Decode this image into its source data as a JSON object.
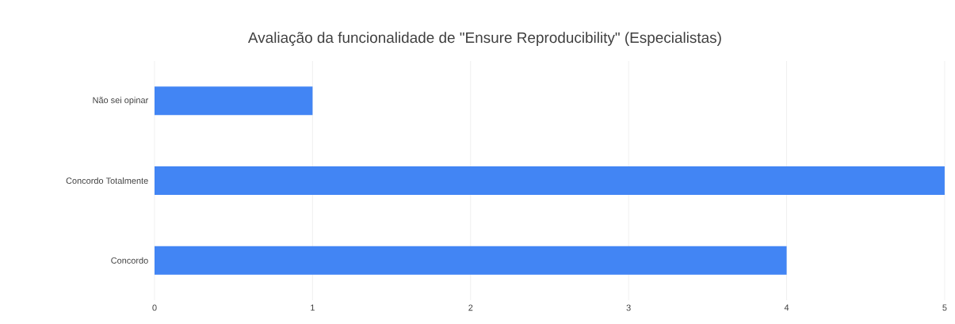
{
  "chart_data": {
    "type": "bar",
    "orientation": "horizontal",
    "title": "Avaliação da funcionalidade de \"Ensure Reproducibility\" (Especialistas)",
    "categories": [
      "Não sei opinar",
      "Concordo Totalmente",
      "Concordo"
    ],
    "values": [
      1,
      5,
      4
    ],
    "color": "#4285f4",
    "xlim": [
      0,
      5
    ],
    "xticks": [
      0,
      1,
      2,
      3,
      4,
      5
    ],
    "grid": "x"
  }
}
